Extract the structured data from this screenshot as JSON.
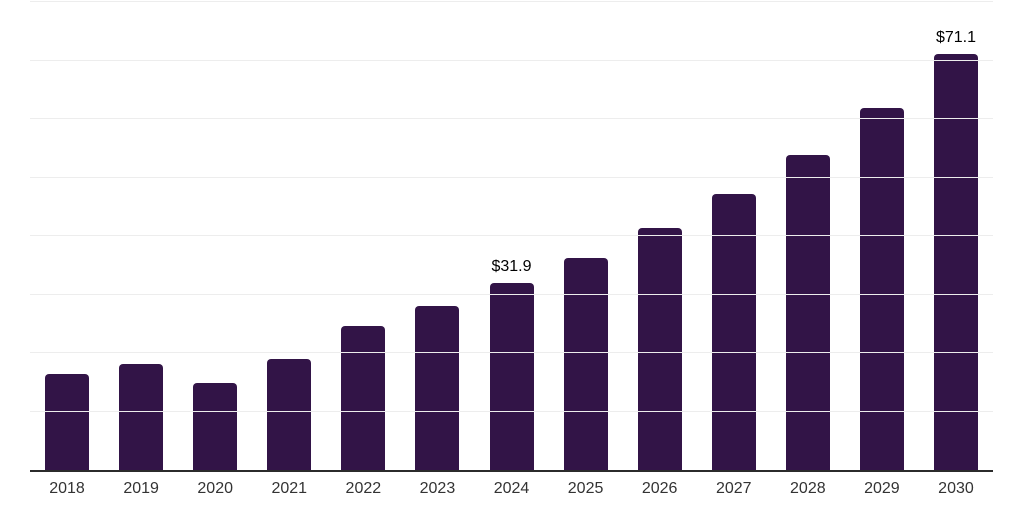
{
  "chart_data": {
    "type": "bar",
    "title": "",
    "xlabel": "",
    "ylabel": "",
    "categories": [
      "2018",
      "2019",
      "2020",
      "2021",
      "2022",
      "2023",
      "2024",
      "2025",
      "2026",
      "2027",
      "2028",
      "2029",
      "2030"
    ],
    "values": [
      16.4,
      18.1,
      14.9,
      18.9,
      24.6,
      28.0,
      31.9,
      36.2,
      41.3,
      47.1,
      53.9,
      61.8,
      71.1
    ],
    "data_labels": [
      "",
      "",
      "",
      "",
      "",
      "",
      "$31.9",
      "",
      "",
      "",
      "",
      "",
      "$71.1"
    ],
    "ylim": [
      0,
      80
    ],
    "gridline_step": 10,
    "grid": true,
    "legend": false,
    "y_axis_tick_labels_visible": false,
    "bar_color": "#321447",
    "axis_color": "#2b2b2b",
    "gridline_color": "#ededed",
    "x_label_color": "#333333",
    "data_label_color": "#000000",
    "background": "#ffffff"
  }
}
